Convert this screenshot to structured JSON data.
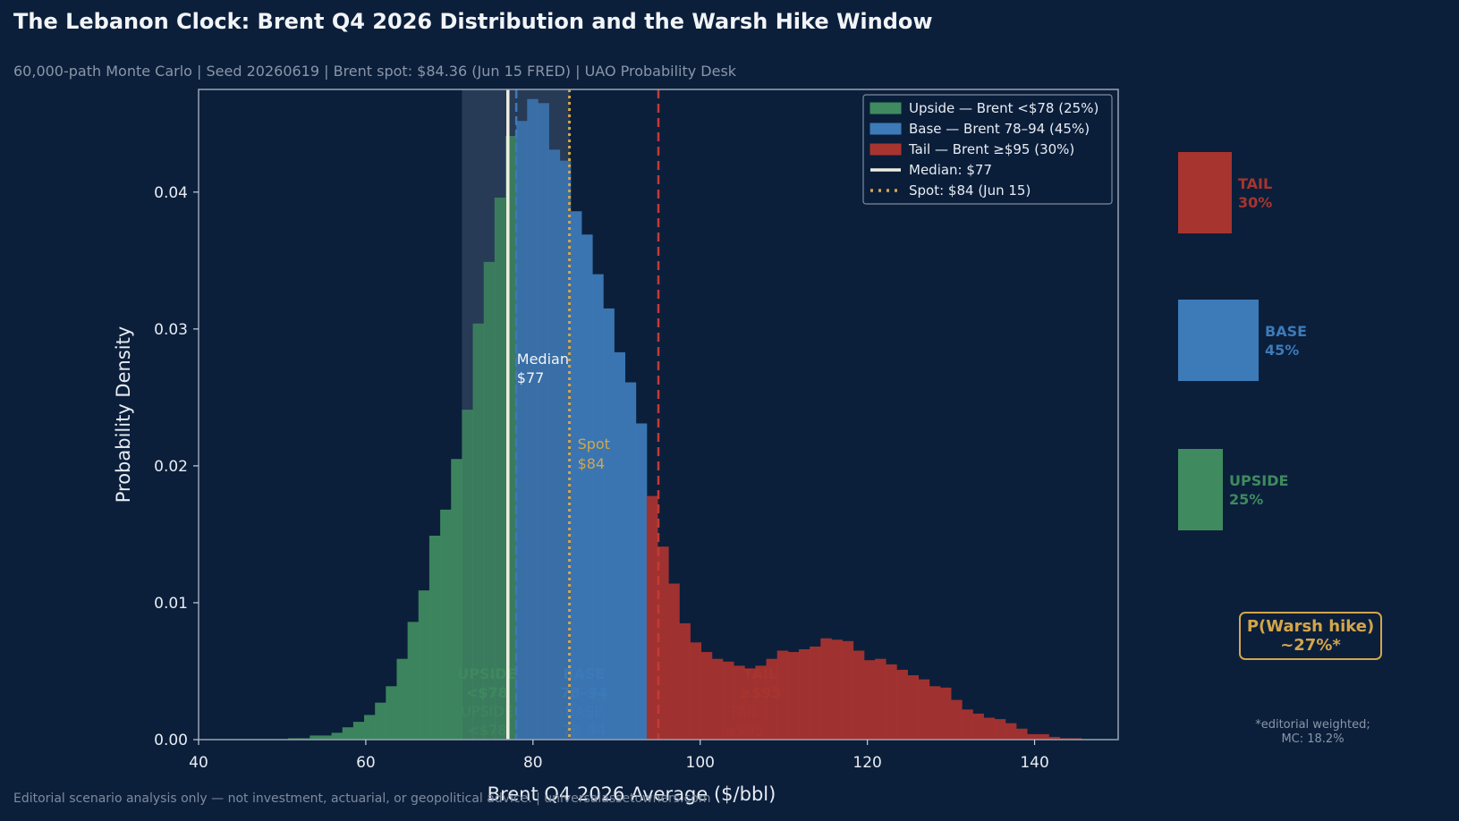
{
  "title": "The Lebanon Clock: Brent Q4 2026 Distribution and the Warsh Hike Window",
  "subtitle": "60,000-path Monte Carlo  |  Seed 20260619  |  Brent spot: $84.36 (Jun 15 FRED)  |  UAO Probability Desk",
  "footer": "Editorial scenario analysis only — not investment, actuarial, or geopolitical advice.  |  universalassetowners.com",
  "colors": {
    "background": "#0b1f3b",
    "upside": "#3f8a5f",
    "base": "#3d7ab8",
    "tail": "#a8342f",
    "median": "#f0ede0",
    "spot": "#d4a64a"
  },
  "chart_data": {
    "type": "bar",
    "xlabel": "Brent Q4 2026 Average ($/bbl)",
    "ylabel": "Probability Density",
    "xlim": [
      40,
      150
    ],
    "ylim": [
      0,
      0.0475
    ],
    "xticks": [
      "40",
      "60",
      "80",
      "100",
      "120",
      "140"
    ],
    "yticks": [
      "0.00",
      "0.01",
      "0.02",
      "0.03",
      "0.04"
    ],
    "bin_width": 1.3,
    "bin_start": 50.7,
    "densities": [
      0.0001,
      0.0001,
      0.0003,
      0.0003,
      0.0005,
      0.0009,
      0.0013,
      0.0018,
      0.0027,
      0.0039,
      0.0059,
      0.0086,
      0.0109,
      0.0149,
      0.0168,
      0.0205,
      0.0241,
      0.0304,
      0.0349,
      0.0396,
      0.0441,
      0.0452,
      0.0468,
      0.0465,
      0.0431,
      0.0423,
      0.0386,
      0.0369,
      0.034,
      0.0315,
      0.0283,
      0.0261,
      0.0231,
      0.0178,
      0.0141,
      0.0114,
      0.0085,
      0.0071,
      0.0064,
      0.0059,
      0.0057,
      0.0054,
      0.0052,
      0.0054,
      0.0059,
      0.0065,
      0.0064,
      0.0066,
      0.0068,
      0.0074,
      0.0073,
      0.0072,
      0.0065,
      0.0058,
      0.0059,
      0.0055,
      0.0051,
      0.0047,
      0.0044,
      0.0039,
      0.0038,
      0.0029,
      0.0022,
      0.0019,
      0.0016,
      0.0015,
      0.0012,
      0.0008,
      0.0004,
      0.0004,
      0.0002,
      0.0001,
      0.0001
    ],
    "series": [
      {
        "name": "Upside — Brent <$78 (25%)",
        "range": [
          0,
          78
        ],
        "color": "#3f8a5f"
      },
      {
        "name": "Base — Brent 78–94 (45%)",
        "range": [
          78,
          94
        ],
        "color": "#3d7ab8"
      },
      {
        "name": "Tail — Brent ≥$95 (30%)",
        "range": [
          94,
          200
        ],
        "color": "#a8342f"
      }
    ],
    "lines": {
      "median": {
        "x": 77,
        "legend": "Median: $77",
        "label_line1": "Median",
        "label_line2": "$77"
      },
      "spot": {
        "x": 84.36,
        "legend": "Spot: $84 (Jun 15)",
        "label_line1": "Spot",
        "label_line2": "$84"
      },
      "base_lower": {
        "x": 78
      },
      "tail_threshold": {
        "x": 95
      }
    },
    "shaded_band": [
      71.5,
      84.4
    ],
    "zone_labels": [
      {
        "text1": "UPSIDE",
        "text2": "<$78",
        "x": 74.5,
        "color": "#3f8a5f"
      },
      {
        "text1": "BASE",
        "text2": "78–94",
        "x": 86.1,
        "color": "#3d7ab8"
      },
      {
        "text1": "TAIL",
        "text2": "≥$95",
        "x": 107.2,
        "color": "#a8342f"
      }
    ],
    "legend_position": "top-right",
    "grid": false
  },
  "side_panel": {
    "scenarios": [
      {
        "label": "TAIL",
        "pct": "30%",
        "prob": 0.3,
        "color": "#a8342f"
      },
      {
        "label": "BASE",
        "pct": "45%",
        "prob": 0.45,
        "color": "#3d7ab8"
      },
      {
        "label": "UPSIDE",
        "pct": "25%",
        "prob": 0.25,
        "color": "#3f8a5f"
      }
    ],
    "hike_line1": "P(Warsh hike)",
    "hike_line2": "~27%*",
    "hike_note_line1": "*editorial weighted;",
    "hike_note_line2": "MC: 18.2%"
  }
}
